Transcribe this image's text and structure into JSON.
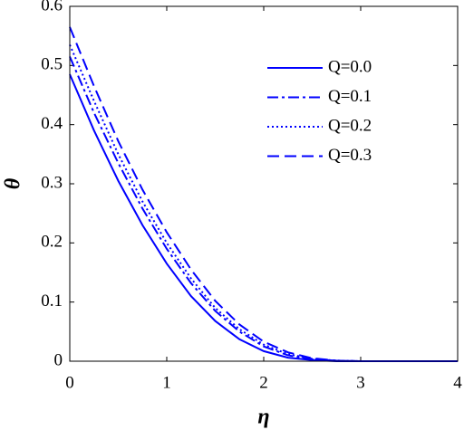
{
  "chart_data": {
    "type": "line",
    "xlabel": "η",
    "ylabel": "θ",
    "x": [
      0,
      0.25,
      0.5,
      0.75,
      1,
      1.25,
      1.5,
      1.75,
      2,
      2.25,
      2.5,
      2.75,
      3,
      3.25,
      3.5,
      3.75,
      4
    ],
    "series": [
      {
        "name": "Q=0.0",
        "color": "#0000ff",
        "linestyle": "solid",
        "values": [
          0.485,
          0.39,
          0.305,
          0.23,
          0.165,
          0.11,
          0.068,
          0.037,
          0.017,
          0.006,
          0.002,
          0,
          0,
          0,
          0,
          0,
          0
        ]
      },
      {
        "name": "Q=0.1",
        "color": "#0000ff",
        "linestyle": "dashdot",
        "values": [
          0.515,
          0.42,
          0.335,
          0.258,
          0.19,
          0.132,
          0.085,
          0.05,
          0.025,
          0.01,
          0.003,
          0.001,
          0,
          0,
          0,
          0,
          0
        ]
      },
      {
        "name": "Q=0.2",
        "color": "#0000ff",
        "linestyle": "dotted",
        "values": [
          0.535,
          0.44,
          0.35,
          0.27,
          0.2,
          0.14,
          0.09,
          0.054,
          0.028,
          0.012,
          0.004,
          0.001,
          0,
          0,
          0,
          0,
          0
        ]
      },
      {
        "name": "Q=0.3",
        "color": "#0000ff",
        "linestyle": "dashed",
        "values": [
          0.565,
          0.465,
          0.372,
          0.29,
          0.218,
          0.155,
          0.102,
          0.062,
          0.033,
          0.015,
          0.005,
          0.001,
          0,
          0,
          0,
          0,
          0
        ]
      }
    ],
    "xlim": [
      0,
      4
    ],
    "xticks": [
      0,
      1,
      2,
      3,
      4
    ],
    "ylim": [
      0,
      0.6
    ],
    "yticks": [
      0,
      0.1,
      0.2,
      0.3,
      0.4,
      0.5,
      0.6
    ],
    "grid": false,
    "legend": "upper right"
  }
}
